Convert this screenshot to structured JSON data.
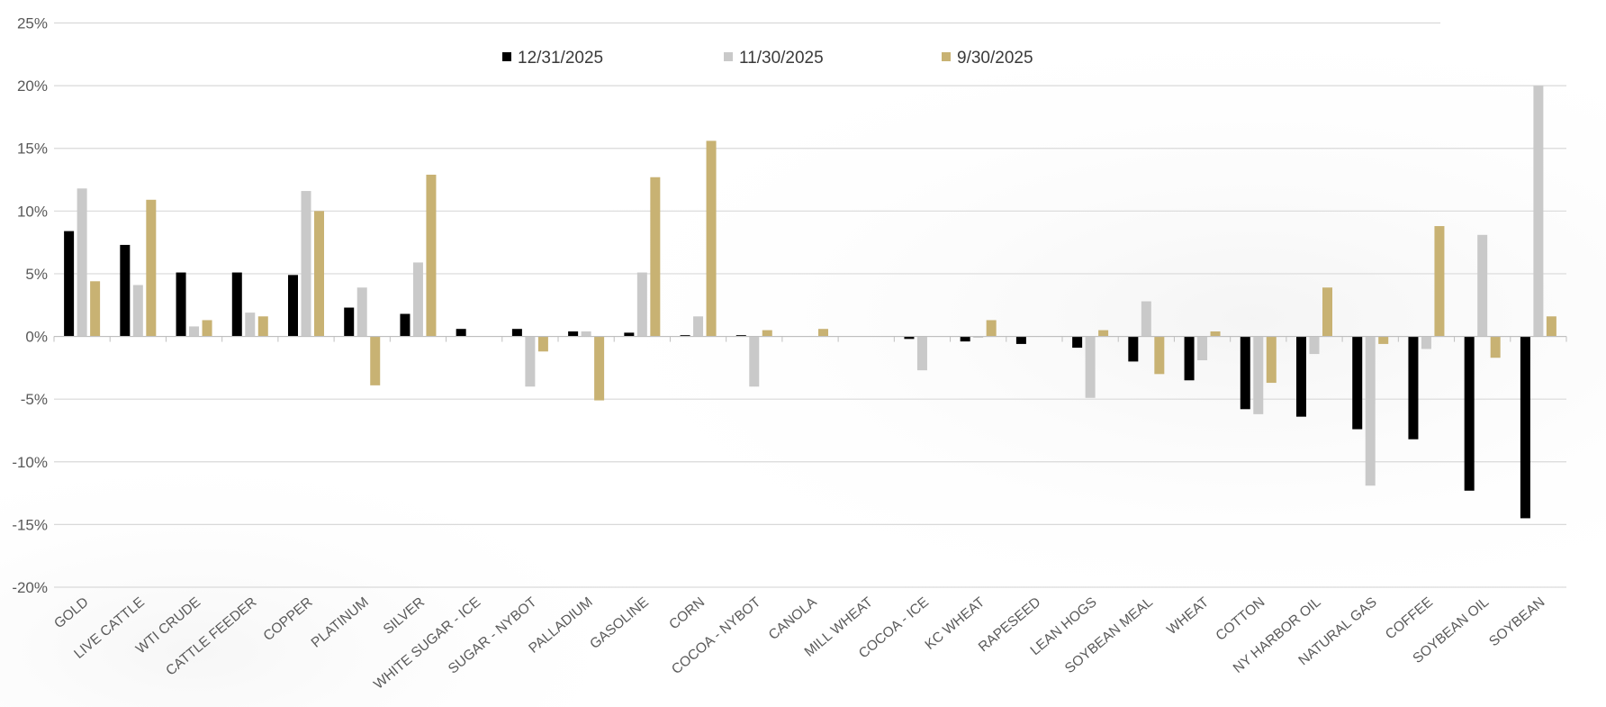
{
  "chart_data": {
    "type": "bar",
    "title": "",
    "xlabel": "",
    "ylabel": "",
    "ylim": [
      -20,
      25
    ],
    "y_ticks": [
      25,
      20,
      15,
      10,
      5,
      0,
      -5,
      -10,
      -15,
      -20
    ],
    "y_tick_format": "%",
    "grid": true,
    "legend_position": "top-center",
    "categories": [
      "GOLD",
      "LIVE CATTLE",
      "WTI CRUDE",
      "CATTLE FEEDER",
      "COPPER",
      "PLATINUM",
      "SILVER",
      "WHITE SUGAR - ICE",
      "SUGAR - NYBOT",
      "PALLADIUM",
      "GASOLINE",
      "CORN",
      "COCOA - NYBOT",
      "CANOLA",
      "MILL WHEAT",
      "COCOA - ICE",
      "KC WHEAT",
      "RAPESEED",
      "LEAN HOGS",
      "SOYBEAN MEAL",
      "WHEAT",
      "COTTON",
      "NY HARBOR OIL",
      "NATURAL GAS",
      "COFFEE",
      "SOYBEAN OIL",
      "SOYBEAN"
    ],
    "series": [
      {
        "name": "12/31/2025",
        "color": "#000000",
        "values": [
          8.4,
          7.3,
          5.1,
          5.1,
          4.9,
          2.3,
          1.8,
          0.6,
          0.6,
          0.4,
          0.3,
          0.1,
          0.1,
          0.0,
          0.0,
          -0.2,
          -0.4,
          -0.6,
          -0.9,
          -2.0,
          -3.5,
          -5.8,
          -6.4,
          -7.4,
          -8.2,
          -12.3,
          -14.5
        ]
      },
      {
        "name": "11/30/2025",
        "color": "#c9c9c9",
        "values": [
          11.8,
          4.1,
          0.8,
          1.9,
          11.6,
          3.9,
          5.9,
          0.0,
          -4.0,
          0.4,
          5.1,
          1.6,
          -4.0,
          0.0,
          0.0,
          -2.7,
          -0.1,
          0.0,
          -4.9,
          2.8,
          -1.9,
          -6.2,
          -1.4,
          -11.9,
          -1.0,
          8.1,
          20.0
        ]
      },
      {
        "name": "9/30/2025",
        "color": "#c8b273",
        "values": [
          4.4,
          10.9,
          1.3,
          1.6,
          10.0,
          -3.9,
          12.9,
          0.0,
          -1.2,
          -5.1,
          12.7,
          15.6,
          0.5,
          0.6,
          0.0,
          0.0,
          1.3,
          0.0,
          0.5,
          -3.0,
          0.4,
          -3.7,
          3.9,
          -0.6,
          8.8,
          -1.7,
          1.6
        ]
      }
    ]
  }
}
